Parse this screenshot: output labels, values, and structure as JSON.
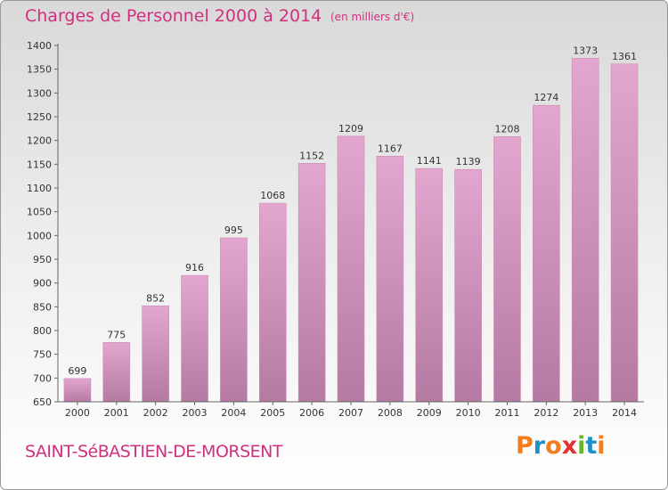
{
  "header": {
    "title": "Charges de Personnel 2000 à 2014",
    "unit": "(en milliers d'€)"
  },
  "footer": {
    "commune": "SAINT-SéBASTIEN-DE-MORSENT",
    "logo": "Proxiti",
    "logo_colors": [
      "#f07d1e",
      "#1e90c8",
      "#f07d1e",
      "#e0302f",
      "#6cb42c",
      "#1e90c8",
      "#f07d1e"
    ]
  },
  "colors": {
    "title": "#d0307e",
    "bar_light": "#e3a6cf",
    "bar_dark": "#b57aa2",
    "bar_stroke": "#c98db5"
  },
  "chart_data": {
    "type": "bar",
    "title": "Charges de Personnel 2000 à 2014",
    "subtitle": "(en milliers d'€)",
    "categories": [
      "2000",
      "2001",
      "2002",
      "2003",
      "2004",
      "2005",
      "2006",
      "2007",
      "2008",
      "2009",
      "2010",
      "2011",
      "2012",
      "2013",
      "2014"
    ],
    "values": [
      699,
      775,
      852,
      916,
      995,
      1068,
      1152,
      1209,
      1167,
      1141,
      1139,
      1208,
      1274,
      1373,
      1361
    ],
    "ylim": [
      650,
      1400
    ],
    "yticks": [
      650,
      700,
      750,
      800,
      850,
      900,
      950,
      1000,
      1050,
      1100,
      1150,
      1200,
      1250,
      1300,
      1350,
      1400
    ],
    "grid": false,
    "data_labels": true
  }
}
